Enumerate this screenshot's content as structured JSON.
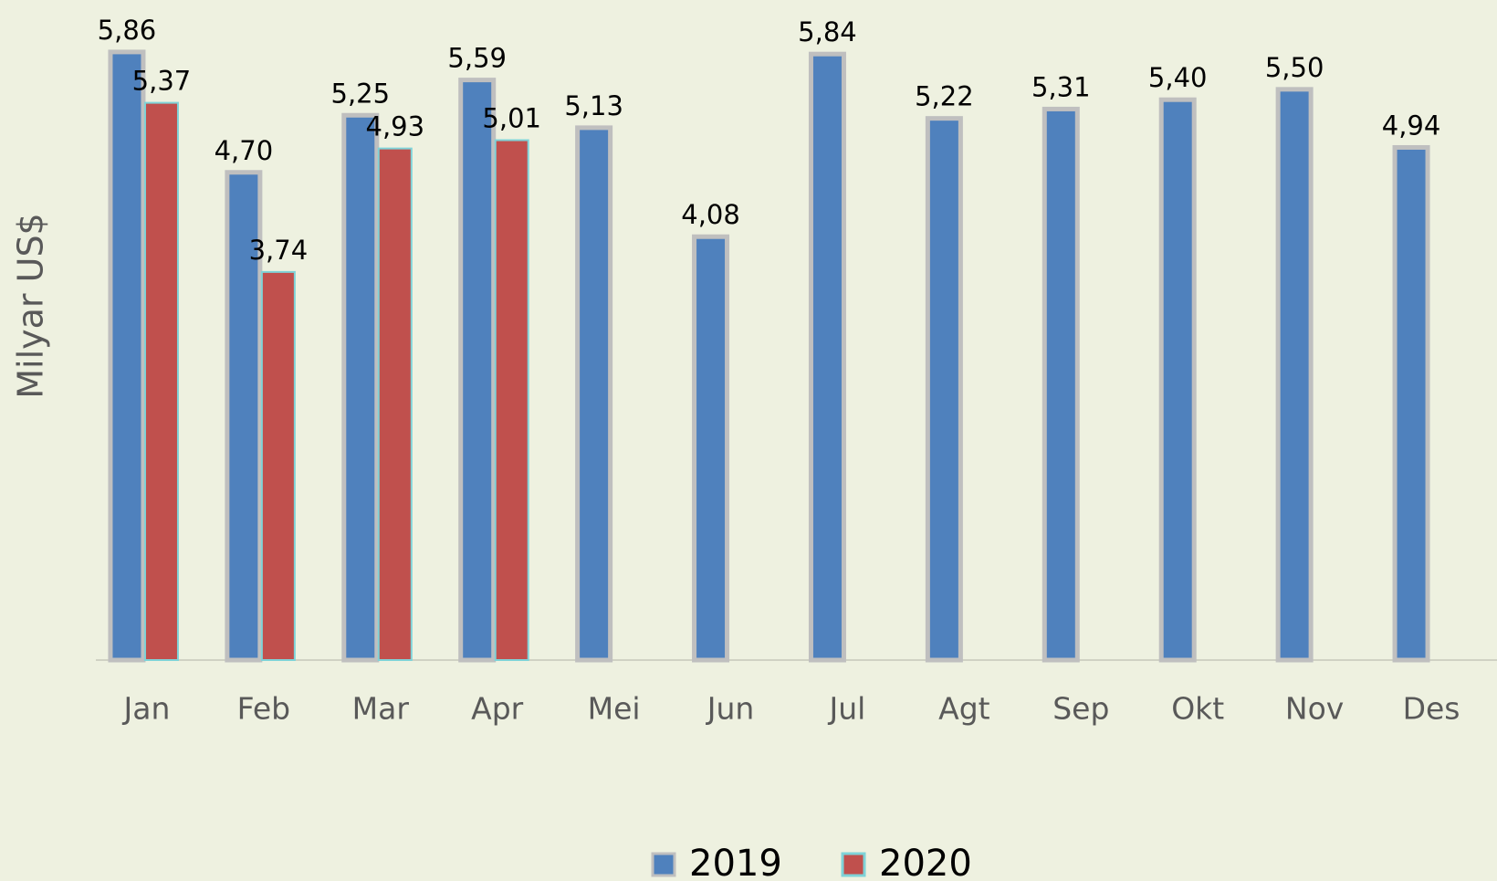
{
  "chart_data": {
    "type": "bar",
    "y_label": "Milyar US$",
    "categories": [
      "Jan",
      "Feb",
      "Mar",
      "Apr",
      "Mei",
      "Jun",
      "Jul",
      "Agt",
      "Sep",
      "Okt",
      "Nov",
      "Des"
    ],
    "series": [
      {
        "name": "2019",
        "color": "#4f81bd",
        "values": [
          5.86,
          4.7,
          5.25,
          5.59,
          5.13,
          4.08,
          5.84,
          5.22,
          5.31,
          5.4,
          5.5,
          4.94
        ],
        "value_labels": [
          "5,86",
          "4,70",
          "5,25",
          "5,59",
          "5,13",
          "4,08",
          "5,84",
          "5,22",
          "5,31",
          "5,40",
          "5,50",
          "4,94"
        ]
      },
      {
        "name": "2020",
        "color": "#c0504d",
        "values": [
          5.37,
          3.74,
          4.93,
          5.01,
          null,
          null,
          null,
          null,
          null,
          null,
          null,
          null
        ],
        "value_labels": [
          "5,37",
          "3,74",
          "4,93",
          "5,01",
          null,
          null,
          null,
          null,
          null,
          null,
          null,
          null
        ]
      }
    ],
    "ylim": [
      0,
      6
    ],
    "legend": "bottom"
  }
}
